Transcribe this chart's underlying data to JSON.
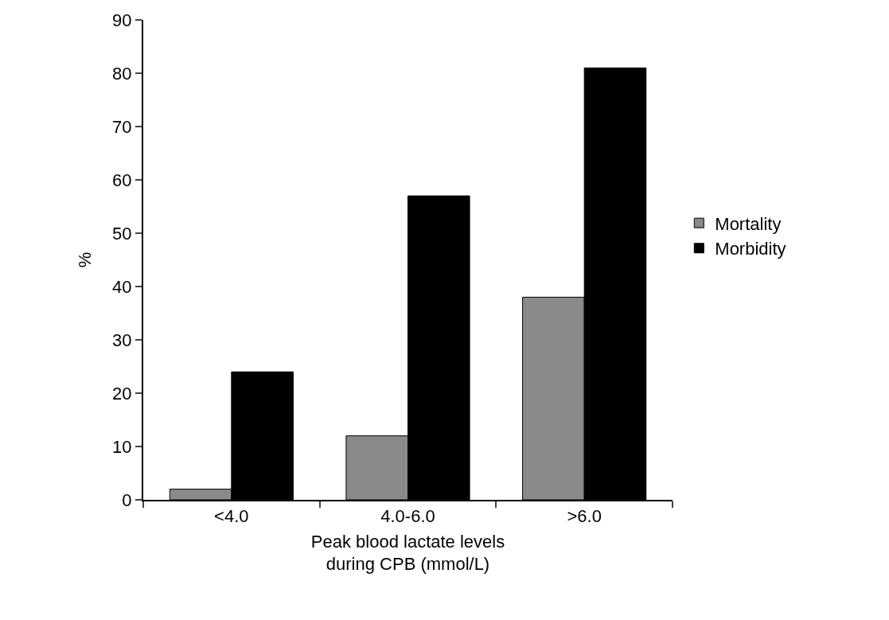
{
  "chart_data": {
    "type": "bar",
    "xlabel": "Peak blood lactate levels\nduring CPB (mmol/L)",
    "ylabel": "%",
    "categories": [
      "<4.0",
      "4.0-6.0",
      ">6.0"
    ],
    "series": [
      {
        "name": "Mortality",
        "color": "#8a8a8a",
        "values": [
          2,
          12,
          38
        ]
      },
      {
        "name": "Morbidity",
        "color": "#000000",
        "values": [
          24,
          57,
          81
        ]
      }
    ],
    "ylim": [
      0,
      90
    ],
    "yticks": [
      0,
      10,
      20,
      30,
      40,
      50,
      60,
      70,
      80,
      90
    ],
    "grid": false,
    "legend": "right"
  }
}
